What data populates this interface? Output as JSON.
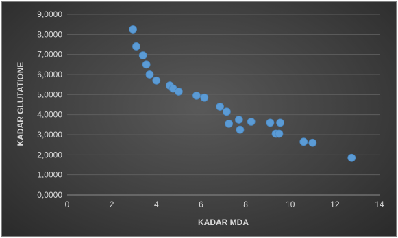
{
  "chart_data": {
    "type": "scatter",
    "title": "",
    "xlabel": "KADAR MDA",
    "ylabel": "KADAR GLUTATIONE",
    "xlim": [
      0,
      14
    ],
    "ylim": [
      0,
      9
    ],
    "x_ticks": [
      "0",
      "2",
      "4",
      "6",
      "8",
      "10",
      "12",
      "14"
    ],
    "y_ticks": [
      "0,0000",
      "1,0000",
      "2,0000",
      "3,0000",
      "4,0000",
      "5,0000",
      "6,0000",
      "7,0000",
      "8,0000",
      "9,0000"
    ],
    "grid": true,
    "legend": "none",
    "marker_color": "#5b9bd5",
    "points": [
      {
        "x": 2.95,
        "y": 8.25
      },
      {
        "x": 3.1,
        "y": 7.4
      },
      {
        "x": 3.4,
        "y": 6.95
      },
      {
        "x": 3.55,
        "y": 6.5
      },
      {
        "x": 3.7,
        "y": 6.0
      },
      {
        "x": 4.0,
        "y": 5.7
      },
      {
        "x": 4.6,
        "y": 5.45
      },
      {
        "x": 4.75,
        "y": 5.3
      },
      {
        "x": 5.0,
        "y": 5.15
      },
      {
        "x": 5.8,
        "y": 4.95
      },
      {
        "x": 6.15,
        "y": 4.85
      },
      {
        "x": 6.85,
        "y": 4.4
      },
      {
        "x": 7.15,
        "y": 4.15
      },
      {
        "x": 7.25,
        "y": 3.55
      },
      {
        "x": 7.7,
        "y": 3.75
      },
      {
        "x": 7.75,
        "y": 3.25
      },
      {
        "x": 8.25,
        "y": 3.65
      },
      {
        "x": 9.1,
        "y": 3.6
      },
      {
        "x": 9.35,
        "y": 3.05
      },
      {
        "x": 9.5,
        "y": 3.05
      },
      {
        "x": 9.55,
        "y": 3.6
      },
      {
        "x": 10.6,
        "y": 2.65
      },
      {
        "x": 11.0,
        "y": 2.6
      },
      {
        "x": 12.75,
        "y": 1.85
      }
    ]
  }
}
